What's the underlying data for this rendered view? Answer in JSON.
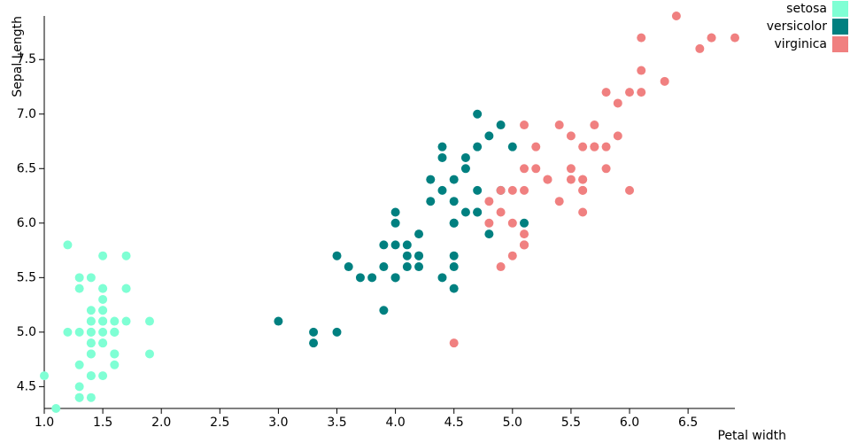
{
  "chart_data": {
    "type": "scatter",
    "x_label": "Petal width",
    "y_label": "Sepal Length",
    "xlim": [
      1.0,
      6.9
    ],
    "ylim": [
      4.3,
      7.9
    ],
    "xticks": [
      {
        "value": 1,
        "label": "1.0"
      },
      1.5,
      {
        "value": 2,
        "label": "2.0"
      },
      2.5,
      {
        "value": 3,
        "label": "3.0"
      },
      3.5,
      {
        "value": 4,
        "label": "4.0"
      },
      4.5,
      {
        "value": 5,
        "label": "5.0"
      },
      5.5,
      {
        "value": 6,
        "label": "6.0"
      },
      6.5
    ],
    "yticks": [
      4.5,
      {
        "value": 5,
        "label": "5.0"
      },
      5.5,
      {
        "value": 6,
        "label": "6.0"
      },
      6.5,
      {
        "value": 7,
        "label": "7.0"
      },
      7.5
    ],
    "legend": "top-right",
    "series": [
      {
        "name": "setosa",
        "color": "#7fffd4",
        "x": [
          1.4,
          1.4,
          1.3,
          1.5,
          1.4,
          1.7,
          1.4,
          1.5,
          1.4,
          1.5,
          1.5,
          1.6,
          1.4,
          1.1,
          1.2,
          1.5,
          1.3,
          1.4,
          1.7,
          1.5,
          1.7,
          1.5,
          1.0,
          1.7,
          1.9,
          1.6,
          1.6,
          1.5,
          1.4,
          1.6,
          1.6,
          1.5,
          1.5,
          1.4,
          1.5,
          1.2,
          1.3,
          1.4,
          1.3,
          1.5,
          1.3,
          1.3,
          1.3,
          1.6,
          1.9,
          1.4,
          1.6,
          1.4,
          1.5,
          1.4
        ],
        "y": [
          5.1,
          4.9,
          4.7,
          4.6,
          5.0,
          5.4,
          4.6,
          5.0,
          4.4,
          4.9,
          5.4,
          4.8,
          4.8,
          4.3,
          5.8,
          5.7,
          5.4,
          5.1,
          5.7,
          5.1,
          5.4,
          5.1,
          4.6,
          5.1,
          4.8,
          5.0,
          5.0,
          5.2,
          5.2,
          4.7,
          4.8,
          5.4,
          5.2,
          5.5,
          4.9,
          5.0,
          5.5,
          4.9,
          4.4,
          5.1,
          5.0,
          4.5,
          4.4,
          5.0,
          5.1,
          4.8,
          5.1,
          4.6,
          5.3,
          5.0
        ]
      },
      {
        "name": "versicolor",
        "color": "#008080",
        "x": [
          4.7,
          4.5,
          4.9,
          4.0,
          4.6,
          4.5,
          4.7,
          3.3,
          4.6,
          3.9,
          3.5,
          4.2,
          4.0,
          4.7,
          3.6,
          4.4,
          4.5,
          4.1,
          4.5,
          3.9,
          4.8,
          4.0,
          4.9,
          4.7,
          4.3,
          4.4,
          4.8,
          5.0,
          4.5,
          3.5,
          3.8,
          3.7,
          3.9,
          5.1,
          4.5,
          4.5,
          4.7,
          4.4,
          4.1,
          4.0,
          4.4,
          4.6,
          4.0,
          3.3,
          4.2,
          4.2,
          4.2,
          4.3,
          3.0,
          4.1
        ],
        "y": [
          7.0,
          6.4,
          6.9,
          5.5,
          6.5,
          5.7,
          6.3,
          4.9,
          6.6,
          5.2,
          5.0,
          5.9,
          6.0,
          6.1,
          5.6,
          6.7,
          5.6,
          5.8,
          6.2,
          5.6,
          5.9,
          6.1,
          6.3,
          6.1,
          6.4,
          6.6,
          6.8,
          6.7,
          6.0,
          5.7,
          5.5,
          5.5,
          5.8,
          6.0,
          5.4,
          6.0,
          6.7,
          6.3,
          5.6,
          5.5,
          5.5,
          6.1,
          5.8,
          5.0,
          5.6,
          5.7,
          5.7,
          6.2,
          5.1,
          5.7
        ]
      },
      {
        "name": "virginica",
        "color": "#f08080",
        "x": [
          6.0,
          5.1,
          5.9,
          5.6,
          5.8,
          6.6,
          4.5,
          6.3,
          5.8,
          6.1,
          5.1,
          5.3,
          5.5,
          5.0,
          5.1,
          5.3,
          5.5,
          6.7,
          6.9,
          5.0,
          5.7,
          4.9,
          6.7,
          4.9,
          5.7,
          6.0,
          4.8,
          4.9,
          5.6,
          5.8,
          6.1,
          6.4,
          5.6,
          5.1,
          5.6,
          6.1,
          5.6,
          5.5,
          4.8,
          5.4,
          5.6,
          5.1,
          5.1,
          5.9,
          5.7,
          5.2,
          5.0,
          5.2,
          5.4,
          5.1
        ],
        "y": [
          6.3,
          5.8,
          7.1,
          6.3,
          6.5,
          7.6,
          4.9,
          7.3,
          6.7,
          7.2,
          6.5,
          6.4,
          6.8,
          5.7,
          5.8,
          6.4,
          6.5,
          7.7,
          7.7,
          6.0,
          6.9,
          5.6,
          7.7,
          6.3,
          6.7,
          7.2,
          6.2,
          6.1,
          6.4,
          7.2,
          7.4,
          7.9,
          6.4,
          6.3,
          6.1,
          7.7,
          6.3,
          6.4,
          6.0,
          6.9,
          6.7,
          6.9,
          5.8,
          6.8,
          6.7,
          6.7,
          6.3,
          6.5,
          6.2,
          5.9
        ]
      }
    ]
  }
}
